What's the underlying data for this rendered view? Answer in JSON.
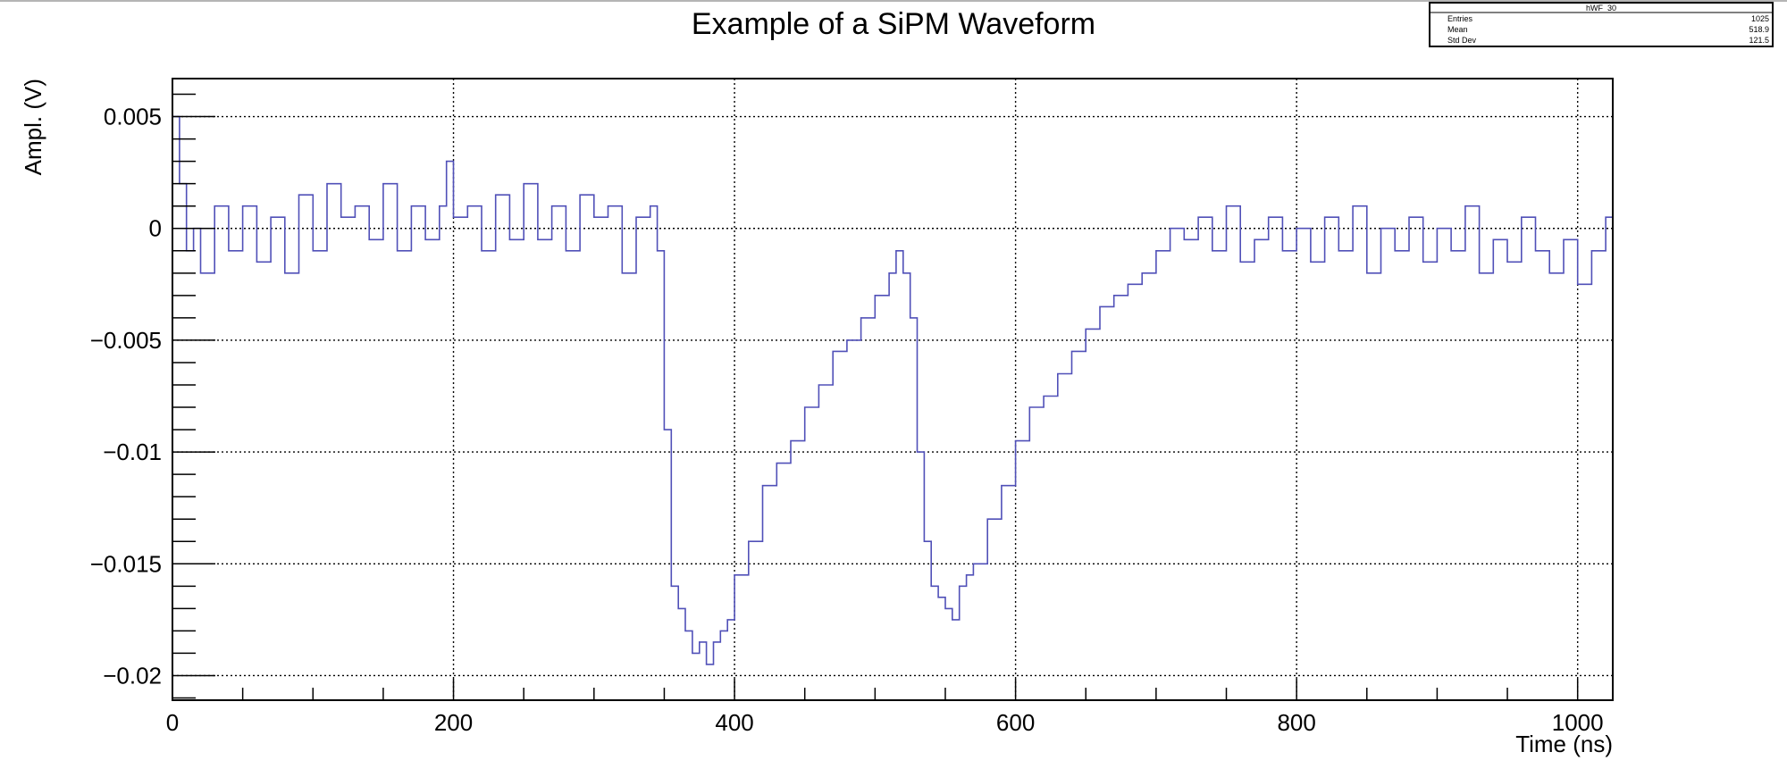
{
  "colors": {
    "series": "#5050b8",
    "axis": "#000000",
    "grid": "#000000",
    "background": "#ffffff"
  },
  "stats_box": {
    "title": "hWF_30",
    "rows": [
      {
        "label": "Entries",
        "value": "1025"
      },
      {
        "label": "Mean",
        "value": "518.9"
      },
      {
        "label": "Std Dev",
        "value": "121.5"
      }
    ]
  },
  "chart_data": {
    "type": "line",
    "style": "step",
    "title": "Example of a SiPM Waveform",
    "xlabel": "Time (ns)",
    "ylabel": "Ampl. (V)",
    "xlim": [
      0,
      1025
    ],
    "ylim": [
      -0.0211,
      0.0067
    ],
    "grid": true,
    "x_ticks": [
      0,
      200,
      400,
      600,
      800,
      1000
    ],
    "x_tick_labels": [
      "0",
      "200",
      "400",
      "600",
      "800",
      "1000"
    ],
    "y_ticks": [
      0.005,
      0,
      -0.005,
      -0.01,
      -0.015,
      -0.02
    ],
    "y_tick_labels": [
      "0.005",
      "0",
      "−0.005",
      "−0.01",
      "−0.015",
      "−0.02"
    ],
    "series": [
      {
        "x": [
          0,
          5,
          10,
          15,
          20,
          30,
          40,
          50,
          60,
          70,
          80,
          90,
          100,
          110,
          120,
          130,
          140,
          150,
          160,
          170,
          180,
          190,
          195,
          200,
          210,
          220,
          230,
          240,
          250,
          260,
          270,
          280,
          290,
          300,
          310,
          320,
          330,
          340,
          345,
          350,
          355,
          360,
          365,
          370,
          375,
          380,
          385,
          390,
          395,
          400,
          410,
          420,
          430,
          440,
          450,
          460,
          470,
          480,
          490,
          500,
          510,
          515,
          520,
          525,
          530,
          535,
          540,
          545,
          550,
          555,
          560,
          565,
          570,
          580,
          590,
          600,
          610,
          620,
          630,
          640,
          650,
          660,
          670,
          680,
          690,
          700,
          710,
          720,
          730,
          740,
          750,
          760,
          770,
          780,
          790,
          800,
          810,
          820,
          830,
          840,
          850,
          860,
          870,
          880,
          890,
          900,
          910,
          920,
          930,
          940,
          950,
          960,
          970,
          980,
          990,
          1000,
          1010,
          1020,
          1025
        ],
        "y": [
          0.005,
          0.002,
          -0.001,
          0.0,
          -0.002,
          0.001,
          -0.001,
          0.001,
          -0.0015,
          0.0005,
          -0.002,
          0.0015,
          -0.001,
          0.002,
          0.0005,
          0.001,
          -0.0005,
          0.002,
          -0.001,
          0.001,
          -0.0005,
          0.001,
          0.003,
          0.0005,
          0.001,
          -0.001,
          0.0015,
          -0.0005,
          0.002,
          -0.0005,
          0.001,
          -0.001,
          0.0015,
          0.0005,
          0.001,
          -0.002,
          0.0005,
          0.001,
          -0.001,
          -0.009,
          -0.016,
          -0.017,
          -0.018,
          -0.019,
          -0.0185,
          -0.0195,
          -0.0185,
          -0.018,
          -0.0175,
          -0.0155,
          -0.014,
          -0.0115,
          -0.0105,
          -0.0095,
          -0.008,
          -0.007,
          -0.0055,
          -0.005,
          -0.004,
          -0.003,
          -0.002,
          -0.001,
          -0.002,
          -0.004,
          -0.01,
          -0.014,
          -0.016,
          -0.0165,
          -0.017,
          -0.0175,
          -0.016,
          -0.0155,
          -0.015,
          -0.013,
          -0.0115,
          -0.0095,
          -0.008,
          -0.0075,
          -0.0065,
          -0.0055,
          -0.0045,
          -0.0035,
          -0.003,
          -0.0025,
          -0.002,
          -0.001,
          0.0,
          -0.0005,
          0.0005,
          -0.001,
          0.001,
          -0.0015,
          -0.0005,
          0.0005,
          -0.001,
          0.0,
          -0.0015,
          0.0005,
          -0.001,
          0.001,
          -0.002,
          0.0,
          -0.001,
          0.0005,
          -0.0015,
          0.0,
          -0.001,
          0.001,
          -0.002,
          -0.0005,
          -0.0015,
          0.0005,
          -0.001,
          -0.002,
          -0.0005,
          -0.0025,
          -0.001,
          0.0005,
          0.0
        ]
      }
    ]
  }
}
